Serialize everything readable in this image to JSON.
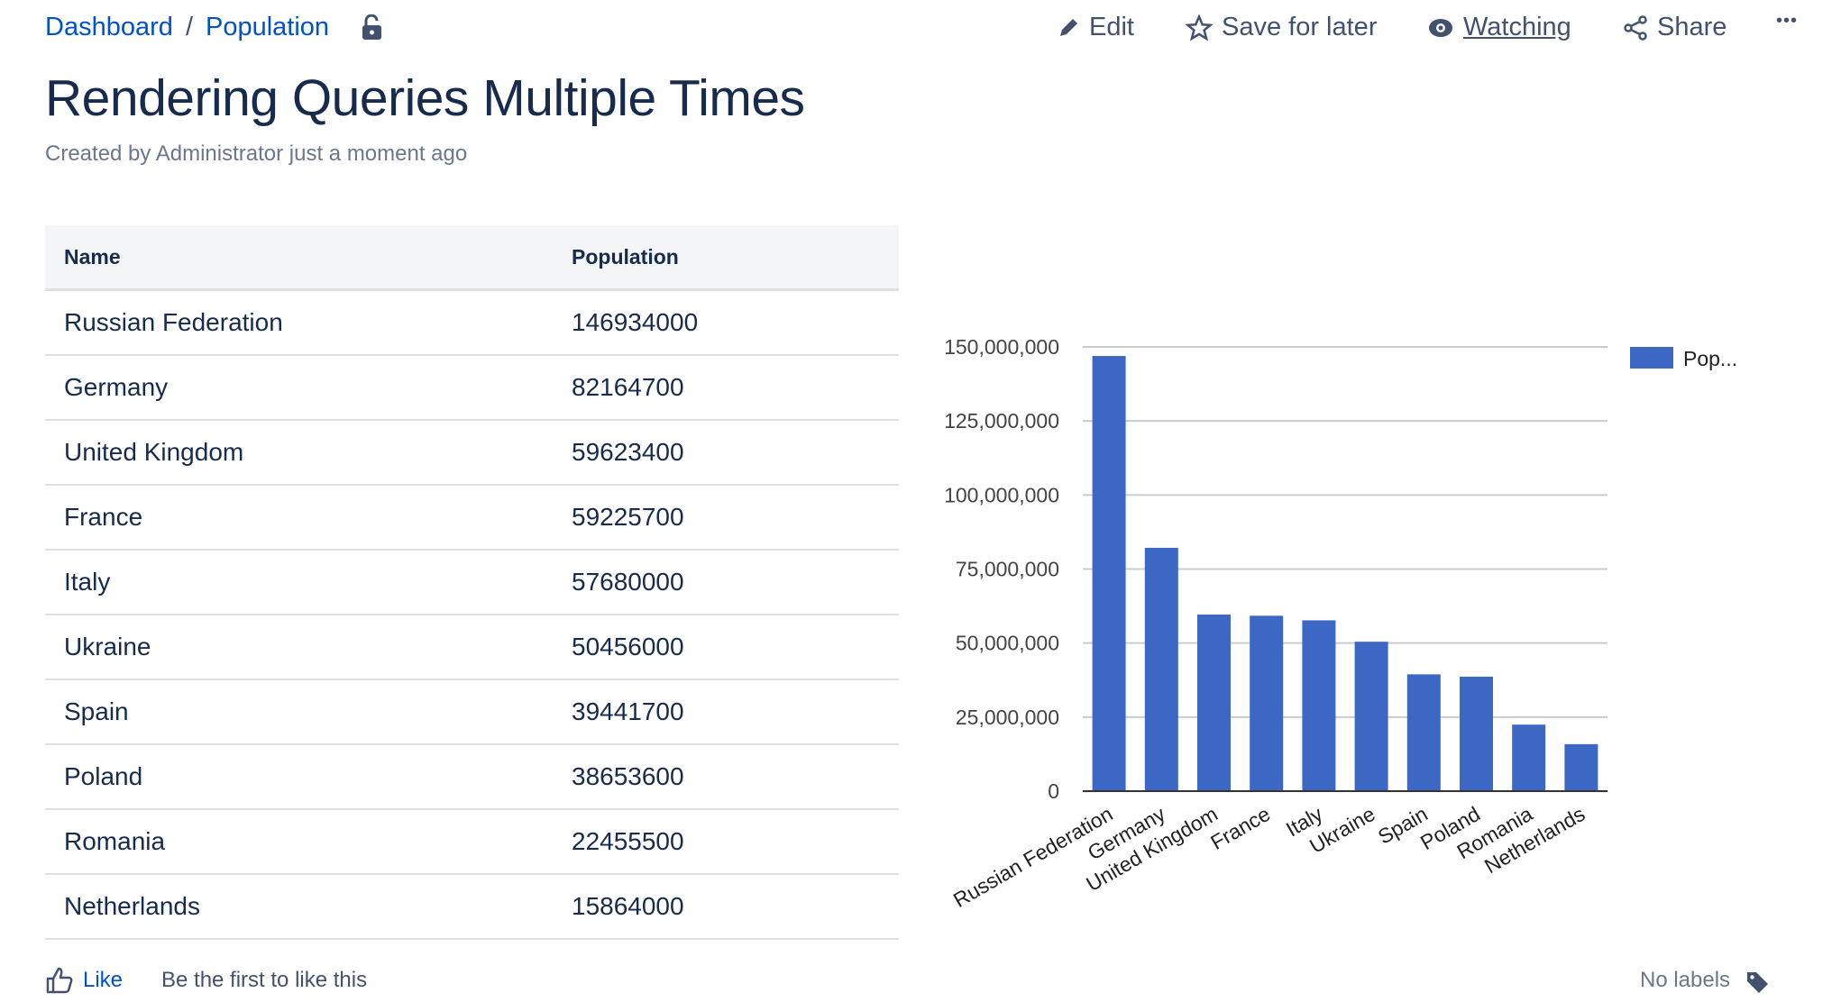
{
  "breadcrumb": {
    "items": [
      "Dashboard",
      "Population"
    ],
    "separator": "/"
  },
  "toolbar": {
    "edit": "Edit",
    "save": "Save for later",
    "watching": "Watching",
    "share": "Share",
    "more": "•••"
  },
  "page": {
    "title": "Rendering Queries Multiple Times",
    "meta": "Created by Administrator just a moment ago"
  },
  "table": {
    "headers": [
      "Name",
      "Population"
    ],
    "rows": [
      [
        "Russian Federation",
        "146934000"
      ],
      [
        "Germany",
        "82164700"
      ],
      [
        "United Kingdom",
        "59623400"
      ],
      [
        "France",
        "59225700"
      ],
      [
        "Italy",
        "57680000"
      ],
      [
        "Ukraine",
        "50456000"
      ],
      [
        "Spain",
        "39441700"
      ],
      [
        "Poland",
        "38653600"
      ],
      [
        "Romania",
        "22455500"
      ],
      [
        "Netherlands",
        "15864000"
      ]
    ]
  },
  "chart_data": {
    "type": "bar",
    "categories": [
      "Russian Federation",
      "Germany",
      "United Kingdom",
      "France",
      "Italy",
      "Ukraine",
      "Spain",
      "Poland",
      "Romania",
      "Netherlands"
    ],
    "series": [
      {
        "name": "Pop...",
        "values": [
          146934000,
          82164700,
          59623400,
          59225700,
          57680000,
          50456000,
          39441700,
          38653600,
          22455500,
          15864000
        ],
        "color": "#3d67c5"
      }
    ],
    "yticks": [
      "0",
      "25,000,000",
      "50,000,000",
      "75,000,000",
      "100,000,000",
      "125,000,000",
      "150,000,000"
    ],
    "ylim": [
      0,
      150000000
    ],
    "grid": true,
    "legend": "right"
  },
  "footer": {
    "like": "Like",
    "like_text": "Be the first to like this",
    "labels": "No labels"
  }
}
